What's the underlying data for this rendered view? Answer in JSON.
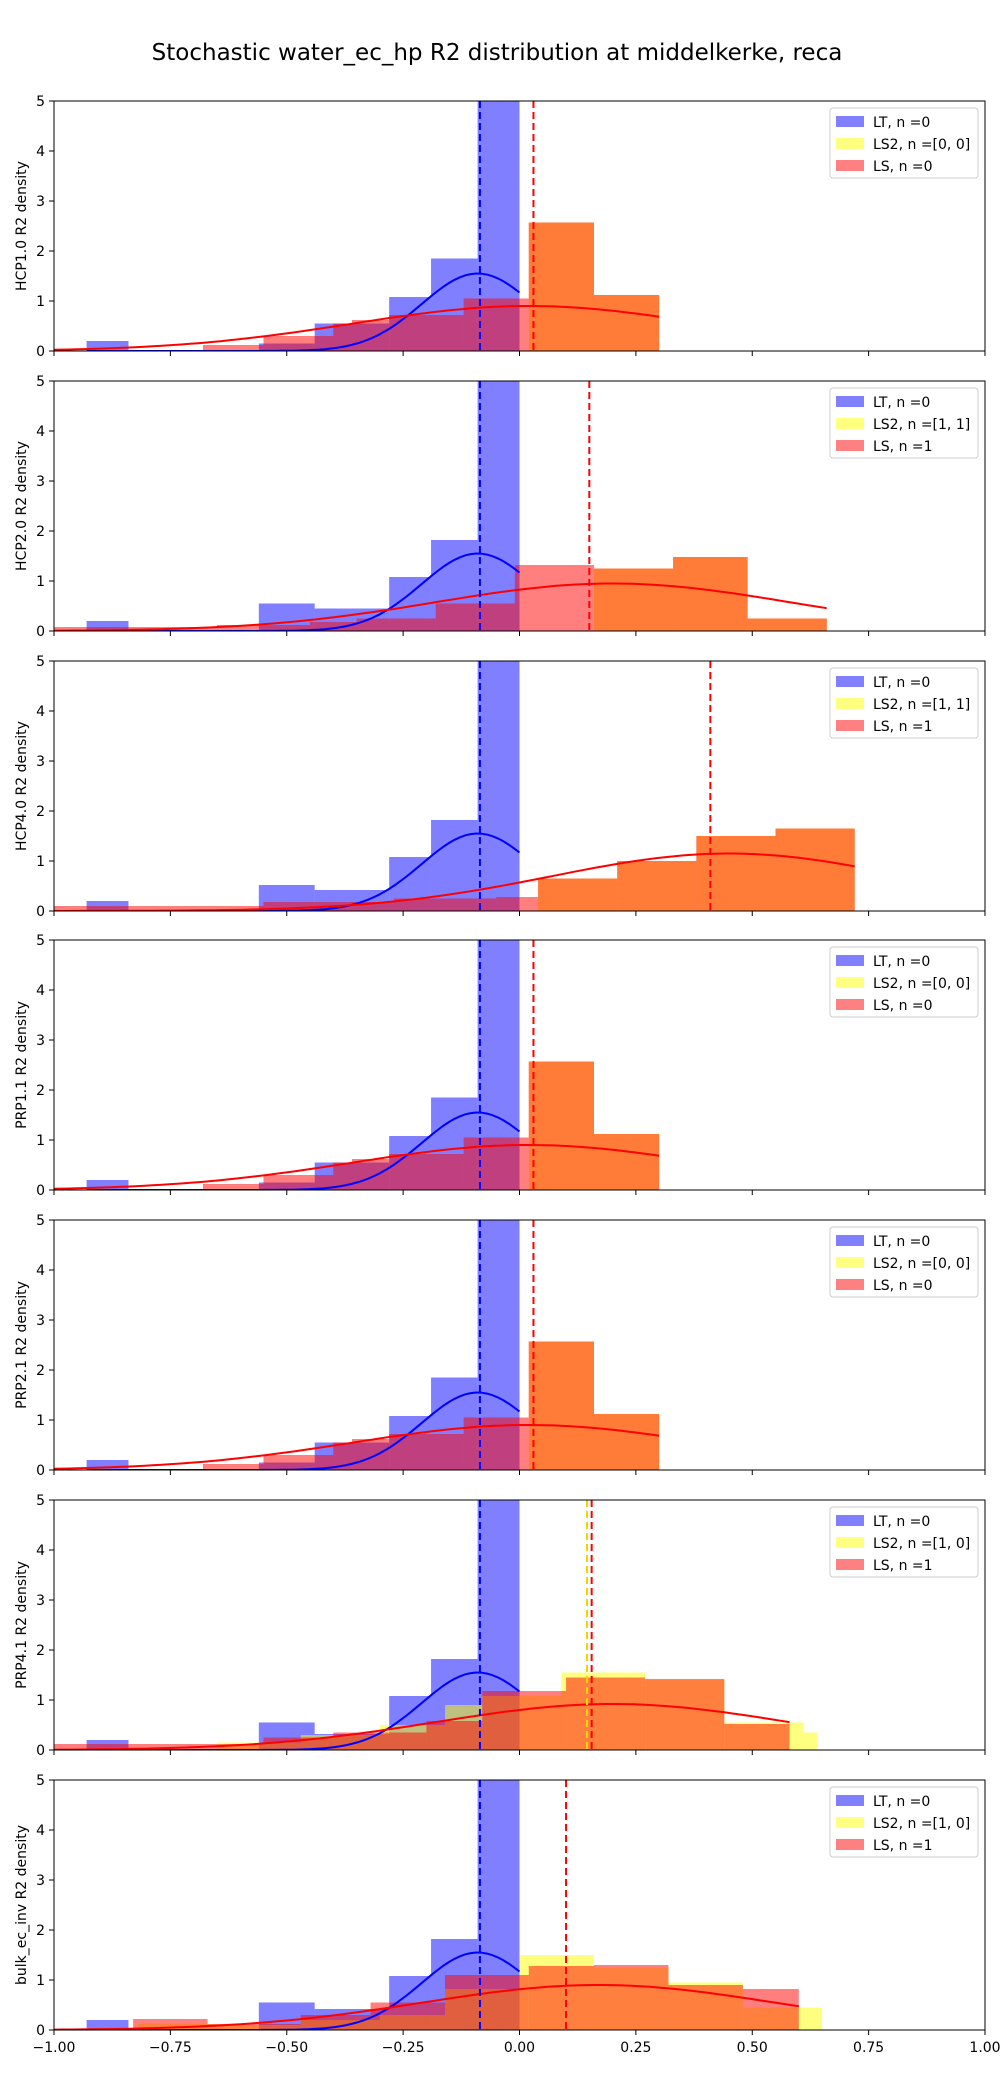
{
  "title": "Stochastic water_ec_hp R2 distribution at middelkerke, reca",
  "colors": {
    "LT": "#0000ff",
    "LS2": "#ffff00",
    "LS": "#ff0000",
    "LT_fill": "#8080ff",
    "LS2_fill": "#ffff80",
    "LS_fill": "#ff8080",
    "overlap": "#ff7b38"
  },
  "chart_data": [
    {
      "type": "bar",
      "ylabel": "HCP1.0 R2 density",
      "xlim": [
        -1.0,
        1.0
      ],
      "ylim": [
        0,
        5
      ],
      "xticks": [
        "−1.00",
        "−0.75",
        "−0.50",
        "−0.25",
        "0.00",
        "0.25",
        "0.50",
        "0.75",
        "1.00"
      ],
      "yticks": [
        "0",
        "1",
        "2",
        "3",
        "4",
        "5"
      ],
      "legend": [
        "LT, n =0",
        "LS2, n =[0, 0]",
        "LS, n =0"
      ],
      "legend_position": "top-right",
      "LT_hist": [
        [
          -0.93,
          -0.84,
          0.2
        ],
        [
          -0.56,
          -0.44,
          0.15
        ],
        [
          -0.44,
          -0.28,
          0.55
        ],
        [
          -0.28,
          -0.19,
          1.08
        ],
        [
          -0.19,
          -0.09,
          1.85
        ],
        [
          -0.09,
          0.0,
          5.0
        ]
      ],
      "LS_hist": [
        [
          -0.68,
          -0.55,
          0.12
        ],
        [
          -0.55,
          -0.4,
          0.3
        ],
        [
          -0.4,
          -0.36,
          0.55
        ],
        [
          -0.36,
          -0.28,
          0.62
        ],
        [
          -0.28,
          -0.12,
          0.72
        ],
        [
          -0.12,
          0.02,
          1.05
        ],
        [
          0.02,
          0.16,
          2.57
        ],
        [
          0.16,
          0.3,
          1.12
        ]
      ],
      "LT_mean": -0.085,
      "LS_mean": 0.03,
      "LS2_mean": null,
      "LT_fit": {
        "mu": -0.09,
        "sigma": 0.12,
        "peak": 1.55,
        "x": [
          -0.93,
          0.0
        ]
      },
      "LS_fit": {
        "mu": 0.02,
        "sigma": 0.38,
        "peak": 0.9,
        "x": [
          -1.0,
          0.3
        ]
      },
      "LS2_fit": null
    },
    {
      "type": "bar",
      "ylabel": "HCP2.0 R2 density",
      "xlim": [
        -1.0,
        1.0
      ],
      "ylim": [
        0,
        5
      ],
      "xticks": [
        "−1.00",
        "−0.75",
        "−0.50",
        "−0.25",
        "0.00",
        "0.25",
        "0.50",
        "0.75",
        "1.00"
      ],
      "yticks": [
        "0",
        "1",
        "2",
        "3",
        "4",
        "5"
      ],
      "legend": [
        "LT, n =0",
        "LS2, n =[1, 1]",
        "LS, n =1"
      ],
      "legend_position": "top-right",
      "LT_hist": [
        [
          -0.93,
          -0.84,
          0.2
        ],
        [
          -0.56,
          -0.44,
          0.55
        ],
        [
          -0.44,
          -0.28,
          0.45
        ],
        [
          -0.28,
          -0.19,
          1.08
        ],
        [
          -0.19,
          -0.09,
          1.82
        ],
        [
          -0.09,
          0.0,
          5.0
        ]
      ],
      "LS_hist": [
        [
          -1.0,
          -0.65,
          0.08
        ],
        [
          -0.65,
          -0.45,
          0.12
        ],
        [
          -0.45,
          -0.35,
          0.18
        ],
        [
          -0.35,
          -0.18,
          0.25
        ],
        [
          -0.18,
          -0.01,
          0.55
        ],
        [
          -0.01,
          0.16,
          1.32
        ],
        [
          0.16,
          0.33,
          1.25
        ],
        [
          0.33,
          0.49,
          1.48
        ],
        [
          0.49,
          0.66,
          0.25
        ]
      ],
      "LT_mean": -0.085,
      "LS_mean": 0.15,
      "LS2_mean": null,
      "LT_fit": {
        "mu": -0.09,
        "sigma": 0.12,
        "peak": 1.55,
        "x": [
          -0.93,
          0.0
        ]
      },
      "LS_fit": {
        "mu": 0.2,
        "sigma": 0.38,
        "peak": 0.95,
        "x": [
          -1.0,
          0.66
        ]
      },
      "LS2_fit": null
    },
    {
      "type": "bar",
      "ylabel": "HCP4.0 R2 density",
      "xlim": [
        -1.0,
        1.0
      ],
      "ylim": [
        0,
        5
      ],
      "xticks": [
        "−1.00",
        "−0.75",
        "−0.50",
        "−0.25",
        "0.00",
        "0.25",
        "0.50",
        "0.75",
        "1.00"
      ],
      "yticks": [
        "0",
        "1",
        "2",
        "3",
        "4",
        "5"
      ],
      "legend": [
        "LT, n =0",
        "LS2, n =[1, 1]",
        "LS, n =1"
      ],
      "legend_position": "top-right",
      "LT_hist": [
        [
          -0.93,
          -0.84,
          0.2
        ],
        [
          -0.56,
          -0.44,
          0.52
        ],
        [
          -0.44,
          -0.28,
          0.42
        ],
        [
          -0.28,
          -0.19,
          1.08
        ],
        [
          -0.19,
          -0.09,
          1.82
        ],
        [
          -0.09,
          0.0,
          5.0
        ]
      ],
      "LS_hist": [
        [
          -1.0,
          -0.55,
          0.1
        ],
        [
          -0.55,
          -0.27,
          0.18
        ],
        [
          -0.27,
          -0.05,
          0.25
        ],
        [
          -0.05,
          0.04,
          0.28
        ],
        [
          0.04,
          0.21,
          0.65
        ],
        [
          0.21,
          0.38,
          1.0
        ],
        [
          0.38,
          0.55,
          1.5
        ],
        [
          0.55,
          0.72,
          1.65
        ]
      ],
      "LT_mean": -0.085,
      "LS_mean": 0.41,
      "LS2_mean": null,
      "LT_fit": {
        "mu": -0.09,
        "sigma": 0.12,
        "peak": 1.55,
        "x": [
          -0.93,
          0.0
        ]
      },
      "LS_fit": {
        "mu": 0.45,
        "sigma": 0.38,
        "peak": 1.15,
        "x": [
          -1.0,
          0.72
        ]
      },
      "LS2_fit": null
    },
    {
      "type": "bar",
      "ylabel": "PRP1.1 R2 density",
      "xlim": [
        -1.0,
        1.0
      ],
      "ylim": [
        0,
        5
      ],
      "xticks": [
        "−1.00",
        "−0.75",
        "−0.50",
        "−0.25",
        "0.00",
        "0.25",
        "0.50",
        "0.75",
        "1.00"
      ],
      "yticks": [
        "0",
        "1",
        "2",
        "3",
        "4",
        "5"
      ],
      "legend": [
        "LT, n =0",
        "LS2, n =[0, 0]",
        "LS, n =0"
      ],
      "legend_position": "top-right",
      "LT_hist": [
        [
          -0.93,
          -0.84,
          0.2
        ],
        [
          -0.56,
          -0.44,
          0.15
        ],
        [
          -0.44,
          -0.28,
          0.55
        ],
        [
          -0.28,
          -0.19,
          1.08
        ],
        [
          -0.19,
          -0.09,
          1.85
        ],
        [
          -0.09,
          0.0,
          5.0
        ]
      ],
      "LS_hist": [
        [
          -0.68,
          -0.55,
          0.12
        ],
        [
          -0.55,
          -0.4,
          0.3
        ],
        [
          -0.4,
          -0.36,
          0.55
        ],
        [
          -0.36,
          -0.28,
          0.62
        ],
        [
          -0.28,
          -0.12,
          0.72
        ],
        [
          -0.12,
          0.02,
          1.05
        ],
        [
          0.02,
          0.16,
          2.57
        ],
        [
          0.16,
          0.3,
          1.12
        ]
      ],
      "LT_mean": -0.085,
      "LS_mean": 0.03,
      "LS2_mean": null,
      "LT_fit": {
        "mu": -0.09,
        "sigma": 0.12,
        "peak": 1.55,
        "x": [
          -0.93,
          0.0
        ]
      },
      "LS_fit": {
        "mu": 0.02,
        "sigma": 0.38,
        "peak": 0.9,
        "x": [
          -1.0,
          0.3
        ]
      },
      "LS2_fit": null
    },
    {
      "type": "bar",
      "ylabel": "PRP2.1 R2 density",
      "xlim": [
        -1.0,
        1.0
      ],
      "ylim": [
        0,
        5
      ],
      "xticks": [
        "−1.00",
        "−0.75",
        "−0.50",
        "−0.25",
        "0.00",
        "0.25",
        "0.50",
        "0.75",
        "1.00"
      ],
      "yticks": [
        "0",
        "1",
        "2",
        "3",
        "4",
        "5"
      ],
      "legend": [
        "LT, n =0",
        "LS2, n =[0, 0]",
        "LS, n =0"
      ],
      "legend_position": "top-right",
      "LT_hist": [
        [
          -0.93,
          -0.84,
          0.2
        ],
        [
          -0.56,
          -0.44,
          0.15
        ],
        [
          -0.44,
          -0.28,
          0.55
        ],
        [
          -0.28,
          -0.19,
          1.08
        ],
        [
          -0.19,
          -0.09,
          1.85
        ],
        [
          -0.09,
          0.0,
          5.0
        ]
      ],
      "LS_hist": [
        [
          -0.68,
          -0.55,
          0.12
        ],
        [
          -0.55,
          -0.4,
          0.3
        ],
        [
          -0.4,
          -0.36,
          0.55
        ],
        [
          -0.36,
          -0.28,
          0.62
        ],
        [
          -0.28,
          -0.12,
          0.72
        ],
        [
          -0.12,
          0.02,
          1.05
        ],
        [
          0.02,
          0.16,
          2.57
        ],
        [
          0.16,
          0.3,
          1.12
        ]
      ],
      "LT_mean": -0.085,
      "LS_mean": 0.03,
      "LS2_mean": null,
      "LT_fit": {
        "mu": -0.09,
        "sigma": 0.12,
        "peak": 1.55,
        "x": [
          -0.93,
          0.0
        ]
      },
      "LS_fit": {
        "mu": 0.02,
        "sigma": 0.38,
        "peak": 0.9,
        "x": [
          -1.0,
          0.3
        ]
      },
      "LS2_fit": null
    },
    {
      "type": "bar",
      "ylabel": "PRP4.1 R2 density",
      "xlim": [
        -1.0,
        1.0
      ],
      "ylim": [
        0,
        5
      ],
      "xticks": [
        "−1.00",
        "−0.75",
        "−0.50",
        "−0.25",
        "0.00",
        "0.25",
        "0.50",
        "0.75",
        "1.00"
      ],
      "yticks": [
        "0",
        "1",
        "2",
        "3",
        "4",
        "5"
      ],
      "legend": [
        "LT, n =0",
        "LS2, n =[1, 0]",
        "LS, n =1"
      ],
      "legend_position": "top-right",
      "LT_hist": [
        [
          -0.93,
          -0.84,
          0.2
        ],
        [
          -0.56,
          -0.44,
          0.55
        ],
        [
          -0.44,
          -0.28,
          0.32
        ],
        [
          -0.28,
          -0.19,
          1.08
        ],
        [
          -0.19,
          -0.09,
          1.82
        ],
        [
          -0.09,
          0.0,
          5.0
        ]
      ],
      "LS2_hist": [
        [
          -0.65,
          -0.47,
          0.15
        ],
        [
          -0.47,
          -0.3,
          0.3
        ],
        [
          -0.3,
          -0.16,
          0.5
        ],
        [
          -0.16,
          -0.08,
          0.9
        ],
        [
          -0.08,
          0.09,
          1.08
        ],
        [
          0.09,
          0.27,
          1.55
        ],
        [
          0.27,
          0.44,
          1.4
        ],
        [
          0.44,
          0.61,
          0.55
        ],
        [
          0.61,
          0.64,
          0.35
        ]
      ],
      "LS_hist": [
        [
          -1.0,
          -0.55,
          0.12
        ],
        [
          -0.55,
          -0.4,
          0.25
        ],
        [
          -0.4,
          -0.2,
          0.35
        ],
        [
          -0.2,
          -0.08,
          0.58
        ],
        [
          -0.08,
          0.1,
          1.18
        ],
        [
          0.1,
          0.27,
          1.45
        ],
        [
          0.27,
          0.44,
          1.42
        ],
        [
          0.44,
          0.58,
          0.52
        ]
      ],
      "LT_mean": -0.085,
      "LS_mean": 0.155,
      "LS2_mean": 0.145,
      "LT_fit": {
        "mu": -0.09,
        "sigma": 0.12,
        "peak": 1.55,
        "x": [
          -0.93,
          0.0
        ]
      },
      "LS_fit": {
        "mu": 0.2,
        "sigma": 0.38,
        "peak": 0.92,
        "x": [
          -1.0,
          0.58
        ]
      },
      "LS2_fit": null
    },
    {
      "type": "bar",
      "ylabel": "bulk_ec_inv R2 density",
      "xlim": [
        -1.0,
        1.0
      ],
      "ylim": [
        0,
        5
      ],
      "xticks": [
        "−1.00",
        "−0.75",
        "−0.50",
        "−0.25",
        "0.00",
        "0.25",
        "0.50",
        "0.75",
        "1.00"
      ],
      "yticks": [
        "0",
        "1",
        "2",
        "3",
        "4",
        "5"
      ],
      "legend": [
        "LT, n =0",
        "LS2, n =[1, 0]",
        "LS, n =1"
      ],
      "legend_position": "top-right",
      "LT_hist": [
        [
          -0.93,
          -0.84,
          0.2
        ],
        [
          -0.56,
          -0.44,
          0.55
        ],
        [
          -0.44,
          -0.28,
          0.42
        ],
        [
          -0.28,
          -0.19,
          1.08
        ],
        [
          -0.19,
          -0.09,
          1.82
        ],
        [
          -0.09,
          0.0,
          5.0
        ]
      ],
      "LS2_hist": [
        [
          -0.82,
          -0.65,
          0.12
        ],
        [
          -0.65,
          -0.47,
          0.1
        ],
        [
          -0.47,
          -0.3,
          0.2
        ],
        [
          -0.3,
          -0.16,
          0.3
        ],
        [
          -0.16,
          0.0,
          0.82
        ],
        [
          0.0,
          0.16,
          1.5
        ],
        [
          0.16,
          0.32,
          1.25
        ],
        [
          0.32,
          0.48,
          0.95
        ],
        [
          0.48,
          0.65,
          0.45
        ]
      ],
      "LS_hist": [
        [
          -0.83,
          -0.67,
          0.22
        ],
        [
          -0.67,
          -0.47,
          0.12
        ],
        [
          -0.47,
          -0.32,
          0.3
        ],
        [
          -0.32,
          -0.16,
          0.55
        ],
        [
          -0.16,
          0.02,
          1.1
        ],
        [
          0.02,
          0.16,
          1.28
        ],
        [
          0.16,
          0.32,
          1.3
        ],
        [
          0.32,
          0.48,
          0.9
        ],
        [
          0.48,
          0.6,
          0.82
        ]
      ],
      "LT_mean": -0.085,
      "LS_mean": 0.1,
      "LS2_mean": null,
      "LT_fit": {
        "mu": -0.09,
        "sigma": 0.12,
        "peak": 1.55,
        "x": [
          -0.93,
          0.0
        ]
      },
      "LS_fit": {
        "mu": 0.17,
        "sigma": 0.38,
        "peak": 0.9,
        "x": [
          -1.0,
          0.6
        ]
      },
      "LS2_fit": null
    }
  ]
}
